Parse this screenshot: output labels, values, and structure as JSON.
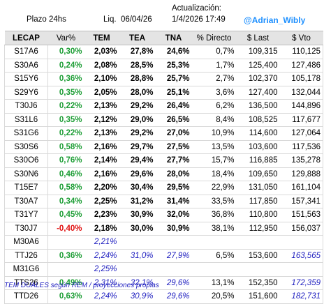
{
  "header": {
    "plazo_label": "Plazo",
    "plazo_value": "24hs",
    "liq_label": "Liq.",
    "liq_value": "06/04/26",
    "update_label": "Actualización:",
    "update_value": "1/4/2026 17:49",
    "handle": "@Adrian_Wibly"
  },
  "columns": [
    "LECAP",
    "Var%",
    "TEM",
    "TEA",
    "TNA",
    "% Directo",
    "$ Last",
    "$ Vto"
  ],
  "rows": [
    {
      "ticker": "S17A6",
      "var": "0,30%",
      "var_sign": "pos",
      "tem": "2,03%",
      "tea": "27,8%",
      "tna": "24,6%",
      "dir": "0,7%",
      "last": "109,315",
      "vto": "110,125"
    },
    {
      "ticker": "S30A6",
      "var": "0,24%",
      "var_sign": "pos",
      "tem": "2,08%",
      "tea": "28,5%",
      "tna": "25,3%",
      "dir": "1,7%",
      "last": "125,400",
      "vto": "127,486"
    },
    {
      "ticker": "S15Y6",
      "var": "0,36%",
      "var_sign": "pos",
      "tem": "2,10%",
      "tea": "28,8%",
      "tna": "25,7%",
      "dir": "2,7%",
      "last": "102,370",
      "vto": "105,178"
    },
    {
      "ticker": "S29Y6",
      "var": "0,35%",
      "var_sign": "pos",
      "tem": "2,05%",
      "tea": "28,0%",
      "tna": "25,1%",
      "dir": "3,6%",
      "last": "127,400",
      "vto": "132,044"
    },
    {
      "ticker": "T30J6",
      "var": "0,22%",
      "var_sign": "pos",
      "tem": "2,13%",
      "tea": "29,2%",
      "tna": "26,4%",
      "dir": "6,2%",
      "last": "136,500",
      "vto": "144,896"
    },
    {
      "ticker": "S31L6",
      "var": "0,35%",
      "var_sign": "pos",
      "tem": "2,12%",
      "tea": "29,0%",
      "tna": "26,5%",
      "dir": "8,4%",
      "last": "108,525",
      "vto": "117,677"
    },
    {
      "ticker": "S31G6",
      "var": "0,22%",
      "var_sign": "pos",
      "tem": "2,13%",
      "tea": "29,2%",
      "tna": "27,0%",
      "dir": "10,9%",
      "last": "114,600",
      "vto": "127,064"
    },
    {
      "ticker": "S30S6",
      "var": "0,58%",
      "var_sign": "pos",
      "tem": "2,16%",
      "tea": "29,7%",
      "tna": "27,5%",
      "dir": "13,5%",
      "last": "103,600",
      "vto": "117,536"
    },
    {
      "ticker": "S30O6",
      "var": "0,76%",
      "var_sign": "pos",
      "tem": "2,14%",
      "tea": "29,4%",
      "tna": "27,7%",
      "dir": "15,7%",
      "last": "116,885",
      "vto": "135,278"
    },
    {
      "ticker": "S30N6",
      "var": "0,46%",
      "var_sign": "pos",
      "tem": "2,16%",
      "tea": "29,6%",
      "tna": "28,0%",
      "dir": "18,4%",
      "last": "109,650",
      "vto": "129,888"
    },
    {
      "ticker": "T15E7",
      "var": "0,58%",
      "var_sign": "pos",
      "tem": "2,20%",
      "tea": "30,4%",
      "tna": "29,5%",
      "dir": "22,9%",
      "last": "131,050",
      "vto": "161,104"
    },
    {
      "ticker": "T30A7",
      "var": "0,34%",
      "var_sign": "pos",
      "tem": "2,25%",
      "tea": "31,2%",
      "tna": "31,4%",
      "dir": "33,5%",
      "last": "117,850",
      "vto": "157,341"
    },
    {
      "ticker": "T31Y7",
      "var": "0,45%",
      "var_sign": "pos",
      "tem": "2,23%",
      "tea": "30,9%",
      "tna": "32,0%",
      "dir": "36,8%",
      "last": "110,800",
      "vto": "151,563"
    },
    {
      "ticker": "T30J7",
      "var": "-0,40%",
      "var_sign": "neg",
      "tem": "2,18%",
      "tea": "30,0%",
      "tna": "30,9%",
      "dir": "38,1%",
      "last": "112,950",
      "vto": "156,037"
    }
  ],
  "duales": [
    {
      "ticker": "M30A6",
      "tem": "2,21%"
    },
    {
      "ticker": "TTJ26",
      "var": "0,36%",
      "tem": "2,24%",
      "tea": "31,0%",
      "tna": "27,9%",
      "dir": "6,5%",
      "last": "153,600",
      "vto": "163,565"
    },
    {
      "ticker": "M31G6",
      "tem": "2,25%"
    },
    {
      "ticker": "TTS26",
      "var": "0,49%",
      "tem": "2,31%",
      "tea": "32,1%",
      "tna": "29,6%",
      "dir": "13,1%",
      "last": "152,350",
      "vto": "172,359"
    },
    {
      "ticker": "TTD26",
      "var": "0,63%",
      "tem": "2,24%",
      "tea": "30,9%",
      "tna": "29,6%",
      "dir": "20,5%",
      "last": "151,600",
      "vto": "182,731"
    }
  ],
  "footnote": "TEM DUALES según REM / proyecciones propias"
}
